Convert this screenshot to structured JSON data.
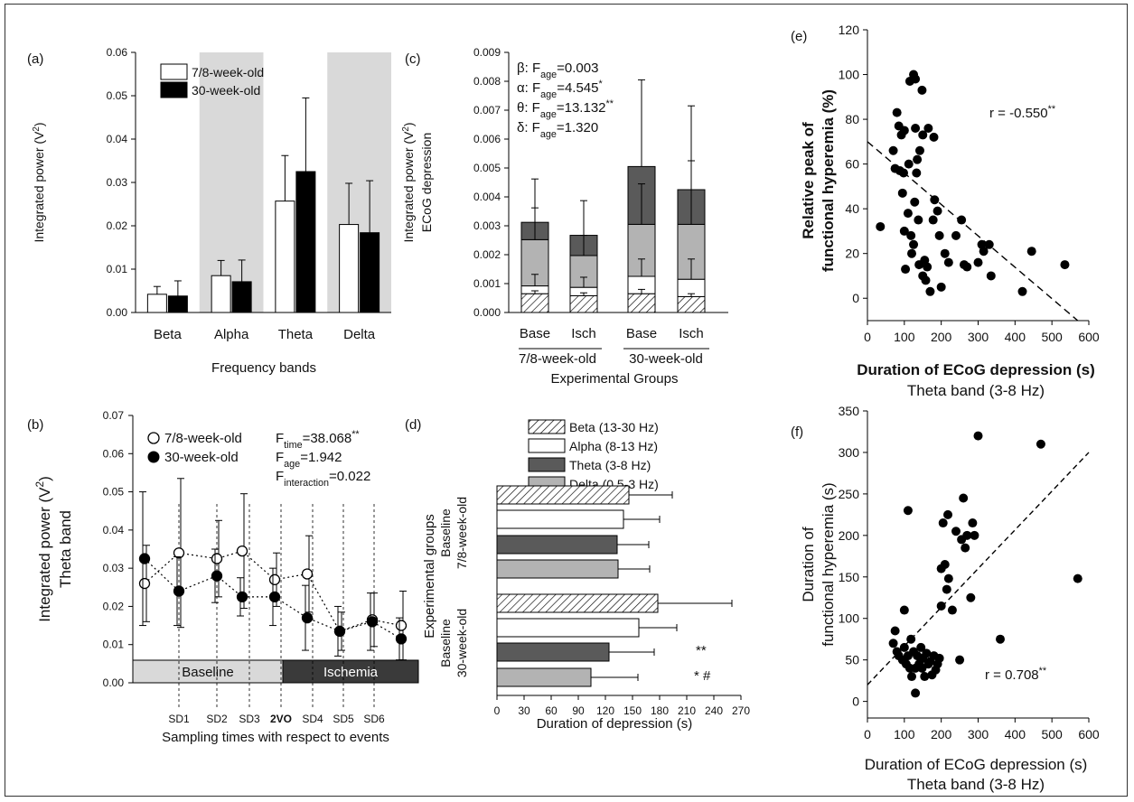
{
  "panels": {
    "a": {
      "letter": "(a)",
      "ylabel": "Integrated power (V²)",
      "xlabel": "Frequency bands",
      "y_ticks": [
        "0.00",
        "0.01",
        "0.02",
        "0.03",
        "0.04",
        "0.05",
        "0.06"
      ],
      "legend": [
        "7/8-week-old",
        "30-week-old"
      ]
    },
    "b": {
      "letter": "(b)",
      "ylabel1": "Integrated power (V²)",
      "ylabel2": "Theta band",
      "xlabel": "Sampling times with respect to events",
      "y_ticks": [
        "0.00",
        "0.01",
        "0.02",
        "0.03",
        "0.04",
        "0.05",
        "0.06",
        "0.07"
      ],
      "legend": [
        "7/8-week-old",
        "30-week-old"
      ],
      "stats": [
        "F_time=38.068**",
        "F_age=1.942",
        "F_interaction=0.022"
      ],
      "event_labels": [
        "SD1",
        "SD2",
        "SD3",
        "2VO",
        "SD4",
        "SD5",
        "SD6"
      ],
      "phase_labels": [
        "Baseline",
        "Ischemia"
      ]
    },
    "c": {
      "letter": "(c)",
      "ylabel1": "Integrated power (V²)",
      "ylabel2": "ECoG depression",
      "xlabel": "Experimental Groups",
      "y_ticks": [
        "0.000",
        "0.001",
        "0.002",
        "0.003",
        "0.004",
        "0.005",
        "0.006",
        "0.007",
        "0.008",
        "0.009"
      ],
      "bar_labels": [
        "Base",
        "Isch",
        "Base",
        "Isch"
      ],
      "group_labels": [
        "7/8-week-old",
        "30-week-old"
      ],
      "stats": [
        "β: F_age=0.003",
        "α: F_age=4.545*",
        "θ: F_age=13.132**",
        "δ: F_age=1.320"
      ]
    },
    "d": {
      "letter": "(d)",
      "ylabel": "Experimental groups",
      "xlabel": "Duration of depression (s)",
      "x_ticks": [
        "0",
        "30",
        "60",
        "90",
        "120",
        "150",
        "180",
        "210",
        "240",
        "270"
      ],
      "legend": [
        "Beta (13-30 Hz)",
        "Alpha (8-13 Hz)",
        "Theta (3-8 Hz)",
        "Delta (0.5-3 Hz)"
      ],
      "group_labels": [
        [
          "Baseline",
          "7/8-week-old"
        ],
        [
          "Baseline",
          "30-week-old"
        ]
      ],
      "annotations": [
        "**",
        "* #"
      ]
    },
    "e": {
      "letter": "(e)",
      "ylabel1": "Relative peak of",
      "ylabel2": "functional hyperemia (%)",
      "xlabel1": "Duration of ECoG depression (s)",
      "xlabel2": "Theta band (3-8 Hz)",
      "x_ticks": [
        "0",
        "100",
        "200",
        "300",
        "400",
        "500",
        "600"
      ],
      "y_ticks": [
        "0",
        "20",
        "40",
        "60",
        "80",
        "100",
        "120"
      ],
      "r_text": "r = -0.550**"
    },
    "f": {
      "letter": "(f)",
      "ylabel1": "Duration of",
      "ylabel2": "functional hyperemia (s)",
      "xlabel1": "Duration of ECoG depression (s)",
      "xlabel2": "Theta band (3-8 Hz)",
      "x_ticks": [
        "0",
        "100",
        "200",
        "300",
        "400",
        "500",
        "600"
      ],
      "y_ticks": [
        "0",
        "50",
        "100",
        "150",
        "200",
        "250",
        "300",
        "350"
      ],
      "r_text": "r = 0.708**"
    }
  },
  "colors": {
    "young": "#ffffff",
    "old": "#000000",
    "shade": "#d9d9d9",
    "theta_dark": "#5a5a5a",
    "delta_light": "#b3b3b3",
    "ischemia_bar": "#3a3a3a",
    "baseline_bar": "#d9d9d9"
  },
  "chart_data": [
    {
      "panel": "a",
      "type": "bar",
      "categories": [
        "Beta",
        "Alpha",
        "Theta",
        "Delta"
      ],
      "shaded_categories": [
        "Alpha",
        "Delta"
      ],
      "ylim": [
        0,
        0.06
      ],
      "series": [
        {
          "name": "7/8-week-old",
          "values": [
            0.0042,
            0.0085,
            0.0257,
            0.0203
          ],
          "errors": [
            0.0018,
            0.0035,
            0.0105,
            0.0095
          ]
        },
        {
          "name": "30-week-old",
          "values": [
            0.0038,
            0.0071,
            0.0325,
            0.0184
          ],
          "errors": [
            0.0035,
            0.005,
            0.017,
            0.012
          ]
        }
      ]
    },
    {
      "panel": "b",
      "type": "line",
      "ylim": [
        0,
        0.07
      ],
      "series": [
        {
          "name": "7/8-week-old",
          "values": [
            0.026,
            0.034,
            0.0325,
            0.0345,
            0.027,
            0.0285,
            0.0135,
            0.0165,
            0.015
          ],
          "errors": [
            0.01,
            0.0195,
            0.01,
            0.015,
            0.007,
            0.01,
            0.005,
            0.007,
            0.009
          ]
        },
        {
          "name": "30-week-old",
          "values": [
            0.0325,
            0.024,
            0.028,
            0.0225,
            0.0225,
            0.017,
            0.0135,
            0.016,
            0.0115
          ],
          "errors": [
            0.0175,
            0.009,
            0.007,
            0.005,
            0.0075,
            0.0085,
            0.0065,
            0.0075,
            0.0055
          ]
        }
      ]
    },
    {
      "panel": "c",
      "type": "bar",
      "stacked": true,
      "categories": [
        "Base",
        "Isch",
        "Base",
        "Isch"
      ],
      "ylim": [
        0,
        0.009
      ],
      "series": [
        {
          "name": "Beta",
          "values": [
            0.00065,
            0.00058,
            0.00065,
            0.00055
          ],
          "errors": [
            0.0001,
            0.0001,
            0.00015,
            0.0001
          ]
        },
        {
          "name": "Alpha",
          "values": [
            0.00027,
            0.00029,
            0.0006,
            0.0006
          ],
          "errors": [
            0.0004,
            0.00035,
            0.0006,
            0.0007
          ]
        },
        {
          "name": "Delta",
          "values": [
            0.0016,
            0.0011,
            0.0018,
            0.0019
          ],
          "errors": [
            0.0011,
            0.0007,
            0.0014,
            0.0022
          ]
        },
        {
          "name": "Theta",
          "values": [
            0.0006,
            0.0007,
            0.002,
            0.0012
          ],
          "errors": [
            0.0015,
            0.0012,
            0.003,
            0.0029
          ]
        }
      ]
    },
    {
      "panel": "d",
      "type": "bar",
      "orientation": "horizontal",
      "groups": [
        "Baseline 7/8-week-old",
        "Baseline 30-week-old"
      ],
      "xlim": [
        0,
        270
      ],
      "series": [
        {
          "name": "Beta (13-30 Hz)",
          "values": [
            146,
            178
          ],
          "errors": [
            48,
            82
          ]
        },
        {
          "name": "Alpha (8-13 Hz)",
          "values": [
            140,
            157
          ],
          "errors": [
            40,
            42
          ]
        },
        {
          "name": "Theta (3-8 Hz)",
          "values": [
            133,
            124
          ],
          "errors": [
            35,
            50
          ]
        },
        {
          "name": "Delta (0.5-3 Hz)",
          "values": [
            134,
            104
          ],
          "errors": [
            35,
            52
          ]
        }
      ]
    },
    {
      "panel": "e",
      "type": "scatter",
      "xlim": [
        0,
        600
      ],
      "ylim": [
        -10,
        120
      ],
      "trend": [
        [
          0,
          70
        ],
        [
          570,
          -10
        ]
      ],
      "points": [
        [
          35,
          32
        ],
        [
          70,
          66
        ],
        [
          75,
          58
        ],
        [
          80,
          83
        ],
        [
          85,
          77
        ],
        [
          88,
          57
        ],
        [
          92,
          73
        ],
        [
          95,
          47
        ],
        [
          98,
          56
        ],
        [
          100,
          30
        ],
        [
          100,
          75
        ],
        [
          103,
          13
        ],
        [
          110,
          38
        ],
        [
          112,
          60
        ],
        [
          115,
          97
        ],
        [
          118,
          28
        ],
        [
          120,
          20
        ],
        [
          125,
          100
        ],
        [
          125,
          24
        ],
        [
          128,
          43
        ],
        [
          130,
          98
        ],
        [
          130,
          76
        ],
        [
          133,
          56
        ],
        [
          135,
          62
        ],
        [
          138,
          35
        ],
        [
          140,
          15
        ],
        [
          142,
          66
        ],
        [
          148,
          93
        ],
        [
          150,
          73
        ],
        [
          150,
          10
        ],
        [
          155,
          17
        ],
        [
          158,
          8
        ],
        [
          162,
          14
        ],
        [
          165,
          76
        ],
        [
          170,
          3
        ],
        [
          178,
          35
        ],
        [
          180,
          72
        ],
        [
          182,
          44
        ],
        [
          190,
          39
        ],
        [
          195,
          28
        ],
        [
          200,
          5
        ],
        [
          210,
          20
        ],
        [
          220,
          16
        ],
        [
          240,
          28
        ],
        [
          255,
          35
        ],
        [
          262,
          15
        ],
        [
          270,
          14
        ],
        [
          300,
          16
        ],
        [
          310,
          24
        ],
        [
          315,
          21
        ],
        [
          330,
          24
        ],
        [
          335,
          10
        ],
        [
          420,
          3
        ],
        [
          445,
          21
        ],
        [
          535,
          15
        ]
      ]
    },
    {
      "panel": "f",
      "type": "scatter",
      "xlim": [
        0,
        600
      ],
      "ylim": [
        -20,
        350
      ],
      "trend": [
        [
          0,
          20
        ],
        [
          600,
          300
        ]
      ],
      "points": [
        [
          70,
          70
        ],
        [
          75,
          85
        ],
        [
          80,
          60
        ],
        [
          85,
          55
        ],
        [
          95,
          50
        ],
        [
          100,
          65
        ],
        [
          100,
          110
        ],
        [
          105,
          45
        ],
        [
          110,
          55
        ],
        [
          110,
          230
        ],
        [
          115,
          40
        ],
        [
          118,
          75
        ],
        [
          120,
          30
        ],
        [
          125,
          60
        ],
        [
          130,
          40
        ],
        [
          130,
          10
        ],
        [
          135,
          55
        ],
        [
          140,
          45
        ],
        [
          145,
          65
        ],
        [
          148,
          40
        ],
        [
          150,
          52
        ],
        [
          155,
          30
        ],
        [
          160,
          58
        ],
        [
          165,
          45
        ],
        [
          170,
          48
        ],
        [
          175,
          32
        ],
        [
          180,
          55
        ],
        [
          185,
          38
        ],
        [
          190,
          45
        ],
        [
          195,
          52
        ],
        [
          200,
          115
        ],
        [
          200,
          160
        ],
        [
          205,
          215
        ],
        [
          210,
          165
        ],
        [
          215,
          135
        ],
        [
          218,
          225
        ],
        [
          220,
          148
        ],
        [
          230,
          110
        ],
        [
          240,
          205
        ],
        [
          250,
          50
        ],
        [
          255,
          195
        ],
        [
          260,
          245
        ],
        [
          265,
          185
        ],
        [
          270,
          200
        ],
        [
          280,
          125
        ],
        [
          285,
          215
        ],
        [
          290,
          200
        ],
        [
          300,
          320
        ],
        [
          360,
          75
        ],
        [
          470,
          310
        ],
        [
          570,
          148
        ]
      ]
    }
  ]
}
